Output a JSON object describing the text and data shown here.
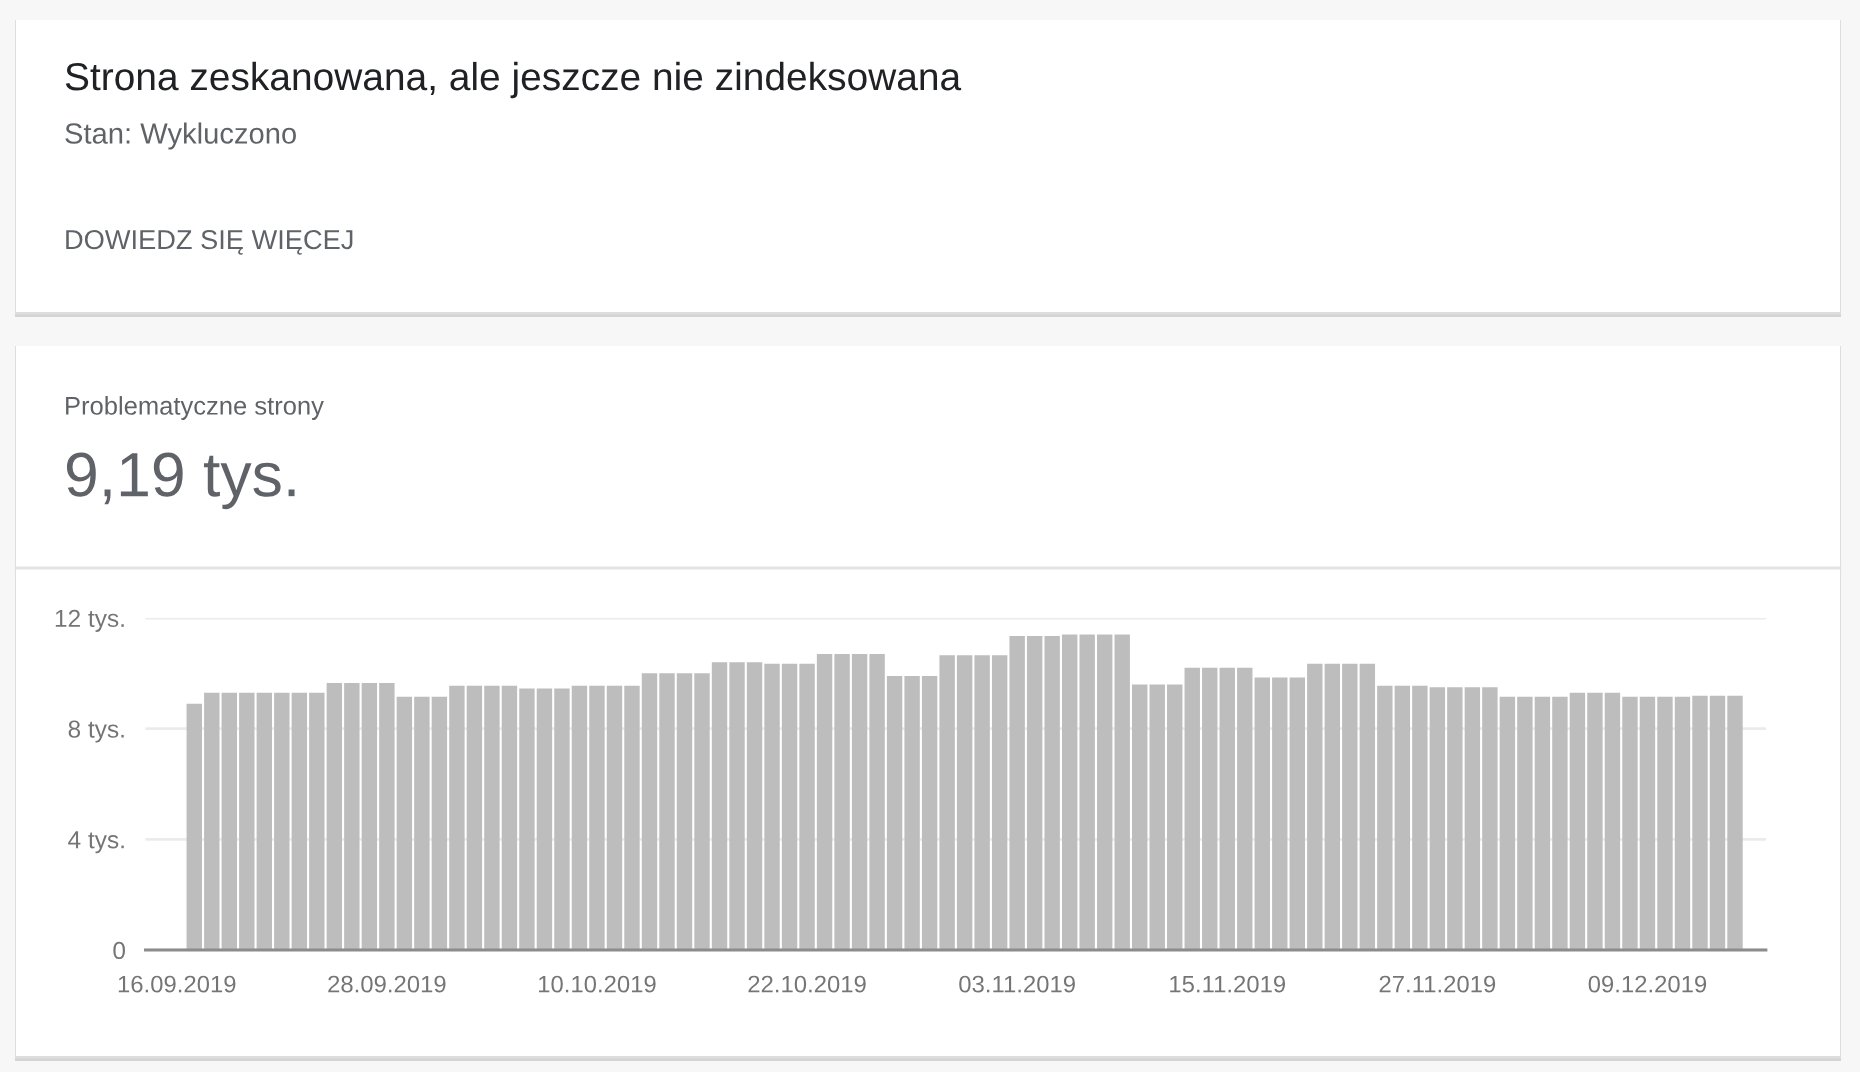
{
  "chart_data": {
    "type": "bar",
    "title": "Strona zeskanowana, ale jeszcze nie zindeksowana",
    "subtitle": "Stan: Wykluczono",
    "annotations": [
      "DOWIEDZ SIĘ WIĘCEJ",
      "Problematyczne strony",
      "9,19 tys."
    ],
    "x": [
      "2019-09-17",
      "2019-09-18",
      "2019-09-19",
      "2019-09-20",
      "2019-09-21",
      "2019-09-22",
      "2019-09-23",
      "2019-09-24",
      "2019-09-25",
      "2019-09-26",
      "2019-09-27",
      "2019-09-28",
      "2019-09-29",
      "2019-09-30",
      "2019-10-01",
      "2019-10-02",
      "2019-10-03",
      "2019-10-04",
      "2019-10-05",
      "2019-10-06",
      "2019-10-07",
      "2019-10-08",
      "2019-10-09",
      "2019-10-10",
      "2019-10-11",
      "2019-10-12",
      "2019-10-13",
      "2019-10-14",
      "2019-10-15",
      "2019-10-16",
      "2019-10-17",
      "2019-10-18",
      "2019-10-19",
      "2019-10-20",
      "2019-10-21",
      "2019-10-22",
      "2019-10-23",
      "2019-10-24",
      "2019-10-25",
      "2019-10-26",
      "2019-10-27",
      "2019-10-28",
      "2019-10-29",
      "2019-10-30",
      "2019-10-31",
      "2019-11-01",
      "2019-11-02",
      "2019-11-03",
      "2019-11-04",
      "2019-11-05",
      "2019-11-06",
      "2019-11-07",
      "2019-11-08",
      "2019-11-09",
      "2019-11-10",
      "2019-11-11",
      "2019-11-12",
      "2019-11-13",
      "2019-11-14",
      "2019-11-15",
      "2019-11-16",
      "2019-11-17",
      "2019-11-18",
      "2019-11-19",
      "2019-11-20",
      "2019-11-21",
      "2019-11-22",
      "2019-11-23",
      "2019-11-24",
      "2019-11-25",
      "2019-11-26",
      "2019-11-27",
      "2019-11-28",
      "2019-11-29",
      "2019-11-30",
      "2019-12-01",
      "2019-12-02",
      "2019-12-03",
      "2019-12-04",
      "2019-12-05",
      "2019-12-06",
      "2019-12-07",
      "2019-12-08",
      "2019-12-09",
      "2019-12-10",
      "2019-12-11",
      "2019-12-12",
      "2019-12-13",
      "2019-12-14"
    ],
    "values": [
      8.9,
      9.3,
      9.3,
      9.3,
      9.3,
      9.3,
      9.3,
      9.3,
      9.65,
      9.65,
      9.65,
      9.65,
      9.15,
      9.15,
      9.15,
      9.55,
      9.55,
      9.55,
      9.55,
      9.45,
      9.45,
      9.45,
      9.55,
      9.55,
      9.55,
      9.55,
      10.0,
      10.0,
      10.0,
      10.0,
      10.4,
      10.4,
      10.4,
      10.35,
      10.35,
      10.35,
      10.7,
      10.7,
      10.7,
      10.7,
      9.9,
      9.9,
      9.9,
      10.65,
      10.65,
      10.65,
      10.65,
      11.35,
      11.35,
      11.35,
      11.4,
      11.4,
      11.4,
      11.4,
      9.6,
      9.6,
      9.6,
      10.2,
      10.2,
      10.2,
      10.2,
      9.85,
      9.85,
      9.85,
      10.35,
      10.35,
      10.35,
      10.35,
      9.55,
      9.55,
      9.55,
      9.5,
      9.5,
      9.5,
      9.5,
      9.15,
      9.15,
      9.15,
      9.15,
      9.3,
      9.3,
      9.3,
      9.15,
      9.15,
      9.15,
      9.15,
      9.19,
      9.19,
      9.19
    ],
    "color": "#bdbdbd",
    "xlim": [
      "2019-09-14T05:00",
      "2019-12-15T18:30"
    ],
    "xticks": [
      {
        "value": "2019-09-16",
        "label": "16.09.2019"
      },
      {
        "value": "2019-09-28",
        "label": "28.09.2019"
      },
      {
        "value": "2019-10-10",
        "label": "10.10.2019"
      },
      {
        "value": "2019-10-22",
        "label": "22.10.2019"
      },
      {
        "value": "2019-11-03",
        "label": "03.11.2019"
      },
      {
        "value": "2019-11-15",
        "label": "15.11.2019"
      },
      {
        "value": "2019-11-27",
        "label": "27.11.2019"
      },
      {
        "value": "2019-12-09",
        "label": "09.12.2019"
      }
    ],
    "ylim": [
      0,
      12
    ],
    "yticks": [
      0,
      {
        "value": 4,
        "label": "4 tys."
      },
      {
        "value": 8,
        "label": "8 tys."
      },
      {
        "value": 12,
        "label": "12 tys."
      }
    ],
    "grid": "y"
  }
}
